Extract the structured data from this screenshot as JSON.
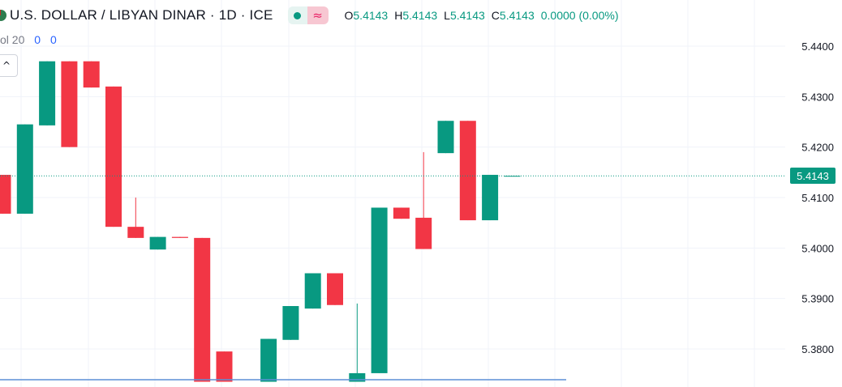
{
  "header": {
    "symbol_title": "U.S. DOLLAR / LIBYAN DINAR · 1D · ICE",
    "status_icon": "market-status-dot",
    "wave_icon": "wave-glyph",
    "wave_glyph": "≈",
    "ohlc": {
      "o_label": "O",
      "o_value": "5.4143",
      "h_label": "H",
      "h_value": "5.4143",
      "l_label": "L",
      "l_value": "5.4143",
      "c_label": "C",
      "c_value": "5.4143"
    },
    "change": "0.0000 (0.00%)"
  },
  "volume": {
    "label": "ol 20",
    "value1": "0",
    "value2": "0"
  },
  "collapse_glyph": "^",
  "last_price_label": "5.4143",
  "colors": {
    "up": "#089981",
    "down": "#f23645",
    "grid": "#f0f3fa",
    "axis_text": "#131722"
  },
  "chart_data": {
    "type": "candlestick",
    "y_ticks": [
      "5.4400",
      "5.4300",
      "5.4200",
      "5.4100",
      "5.4000",
      "5.3900",
      "5.3800"
    ],
    "y_range": [
      5.3735,
      5.4475
    ],
    "last_price": 5.4143,
    "candles": [
      {
        "o": 5.4145,
        "h": 5.4145,
        "l": 5.4068,
        "c": 5.4068
      },
      {
        "o": 5.4068,
        "h": 5.4245,
        "l": 5.4068,
        "c": 5.4245
      },
      {
        "o": 5.4243,
        "h": 5.437,
        "l": 5.4243,
        "c": 5.437
      },
      {
        "o": 5.437,
        "h": 5.437,
        "l": 5.42,
        "c": 5.42
      },
      {
        "o": 5.437,
        "h": 5.437,
        "l": 5.4318,
        "c": 5.4318
      },
      {
        "o": 5.432,
        "h": 5.432,
        "l": 5.4042,
        "c": 5.4042
      },
      {
        "o": 5.4042,
        "h": 5.41,
        "l": 5.402,
        "c": 5.402
      },
      {
        "o": 5.3997,
        "h": 5.4022,
        "l": 5.3997,
        "c": 5.4022
      },
      {
        "o": 5.4022,
        "h": 5.4022,
        "l": 5.402,
        "c": 5.402
      },
      {
        "o": 5.402,
        "h": 5.402,
        "l": 5.3735,
        "c": 5.3735
      },
      {
        "o": 5.3795,
        "h": 5.3795,
        "l": 5.3735,
        "c": 5.3735
      },
      {
        "o": null
      },
      {
        "o": 5.3735,
        "h": 5.382,
        "l": 5.3735,
        "c": 5.382
      },
      {
        "o": 5.3818,
        "h": 5.3885,
        "l": 5.3818,
        "c": 5.3885
      },
      {
        "o": 5.388,
        "h": 5.395,
        "l": 5.388,
        "c": 5.395
      },
      {
        "o": 5.395,
        "h": 5.395,
        "l": 5.3887,
        "c": 5.3887
      },
      {
        "o": 5.3735,
        "h": 5.389,
        "l": 5.3735,
        "c": 5.3752
      },
      {
        "o": 5.3752,
        "h": 5.408,
        "l": 5.3752,
        "c": 5.408
      },
      {
        "o": 5.408,
        "h": 5.408,
        "l": 5.4058,
        "c": 5.4058
      },
      {
        "o": 5.406,
        "h": 5.419,
        "l": 5.3998,
        "c": 5.3998
      },
      {
        "o": 5.4188,
        "h": 5.4252,
        "l": 5.4188,
        "c": 5.4252
      },
      {
        "o": 5.4252,
        "h": 5.4252,
        "l": 5.4055,
        "c": 5.4055
      },
      {
        "o": 5.4055,
        "h": 5.4145,
        "l": 5.4055,
        "c": 5.4145
      },
      {
        "o": 5.4143,
        "h": 5.4143,
        "l": 5.4143,
        "c": 5.4143
      }
    ]
  }
}
